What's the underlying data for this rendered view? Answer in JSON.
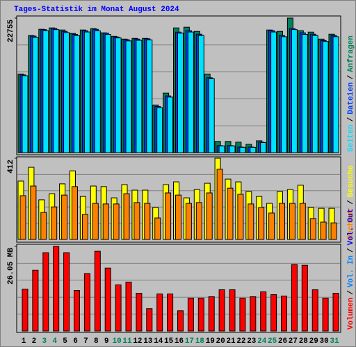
{
  "chart_data": [
    {
      "type": "bar",
      "title": "Tages-Statistik im Monat August 2024",
      "legend_separator": "/",
      "grid_divisions": 5,
      "ylim": [
        0,
        22755
      ],
      "yticks": [
        22755
      ],
      "series": [
        {
          "name": "Seiten",
          "color": "#00e0ff",
          "values": [
            13000,
            19500,
            20600,
            20800,
            20300,
            19800,
            20400,
            20600,
            20000,
            19400,
            18900,
            19000,
            19050,
            7600,
            9400,
            20200,
            20400,
            19800,
            12500,
            1150,
            1150,
            900,
            900,
            1700,
            20400,
            19600,
            20800,
            20000,
            19800,
            18800,
            19600
          ]
        },
        {
          "name": "Dateien",
          "color": "#0040ff",
          "values": [
            13150,
            19700,
            20800,
            21000,
            20500,
            20000,
            20600,
            20850,
            20200,
            19550,
            19100,
            19200,
            19250,
            7800,
            9600,
            20380,
            20620,
            20030,
            12680,
            1190,
            1190,
            950,
            950,
            1780,
            20620,
            19790,
            20970,
            20260,
            20030,
            18960,
            19790
          ]
        },
        {
          "name": "Anfragen",
          "color": "#00805c",
          "values": [
            13270,
            19790,
            20860,
            21090,
            20740,
            20150,
            20740,
            20970,
            20260,
            19670,
            19200,
            19320,
            19320,
            8060,
            10070,
            21090,
            21210,
            20500,
            13270,
            1900,
            1900,
            1780,
            1420,
            2010,
            20740,
            20500,
            22755,
            20620,
            20380,
            19200,
            20030
          ]
        }
      ]
    },
    {
      "type": "bar",
      "grid_divisions": 5,
      "ylim": [
        0,
        412
      ],
      "yticks": [
        412
      ],
      "series": [
        {
          "name": "Rechner",
          "color": "#ff8000",
          "values": [
            222,
            271,
            137,
            165,
            225,
            268,
            127,
            183,
            180,
            180,
            232,
            187,
            183,
            109,
            236,
            225,
            183,
            187,
            236,
            356,
            260,
            229,
            180,
            162,
            134,
            183,
            183,
            183,
            106,
            88,
            84
          ]
        },
        {
          "name": "Besuche",
          "color": "#ffff00",
          "values": [
            296,
            366,
            201,
            232,
            282,
            348,
            218,
            271,
            268,
            211,
            278,
            250,
            250,
            162,
            278,
            292,
            211,
            253,
            285,
            412,
            306,
            292,
            243,
            218,
            183,
            243,
            253,
            275,
            162,
            158,
            158
          ]
        }
      ]
    },
    {
      "type": "bar",
      "grid_divisions": 5,
      "ylim": [
        0,
        26.05
      ],
      "yticks": [
        {
          "value": 26.05,
          "label": "26.05 MB"
        }
      ],
      "categories": [
        "1",
        "2",
        "3",
        "4",
        "5",
        "6",
        "7",
        "8",
        "9",
        "10",
        "11",
        "12",
        "13",
        "14",
        "15",
        "16",
        "17",
        "18",
        "19",
        "20",
        "21",
        "22",
        "23",
        "24",
        "25",
        "26",
        "27",
        "28",
        "29",
        "30",
        "31"
      ],
      "category_colors": [
        "#000000",
        "#000000",
        "#00805c",
        "#00805c",
        "#000000",
        "#000000",
        "#000000",
        "#000000",
        "#000000",
        "#00805c",
        "#00805c",
        "#000000",
        "#000000",
        "#000000",
        "#000000",
        "#000000",
        "#00805c",
        "#00805c",
        "#000000",
        "#000000",
        "#000000",
        "#000000",
        "#000000",
        "#00805c",
        "#00805c",
        "#000000",
        "#000000",
        "#000000",
        "#000000",
        "#000000",
        "#00805c"
      ],
      "series": [
        {
          "name": "Volumen",
          "color": "#ff0000",
          "values": [
            12.92,
            18.73,
            24.11,
            26.05,
            24.11,
            12.49,
            17.65,
            24.54,
            19.38,
            14.21,
            15.07,
            11.63,
            6.89,
            11.41,
            11.41,
            6.24,
            10.12,
            10.12,
            10.55,
            12.7,
            12.7,
            10.12,
            10.55,
            12.06,
            11.2,
            10.77,
            20.45,
            20.24,
            12.7,
            10.12,
            11.63
          ]
        },
        {
          "name": "Vol. In",
          "color": "#0080ff",
          "values": [
            0,
            0,
            0,
            0,
            0,
            0,
            0,
            0,
            0,
            0,
            0,
            0,
            0,
            0,
            0,
            0,
            0,
            0,
            0,
            0,
            0,
            0,
            0,
            0,
            0,
            0,
            0,
            0,
            0,
            0,
            0
          ]
        },
        {
          "name": "Vol. Out",
          "color": "#0000ff",
          "values": [
            0,
            0,
            0,
            0,
            0,
            0,
            0,
            0,
            0,
            0,
            0,
            0,
            0,
            0,
            0,
            0,
            0,
            0,
            0,
            0,
            0,
            0,
            0,
            0,
            0,
            0,
            0,
            0,
            0,
            0,
            0
          ]
        }
      ]
    }
  ]
}
